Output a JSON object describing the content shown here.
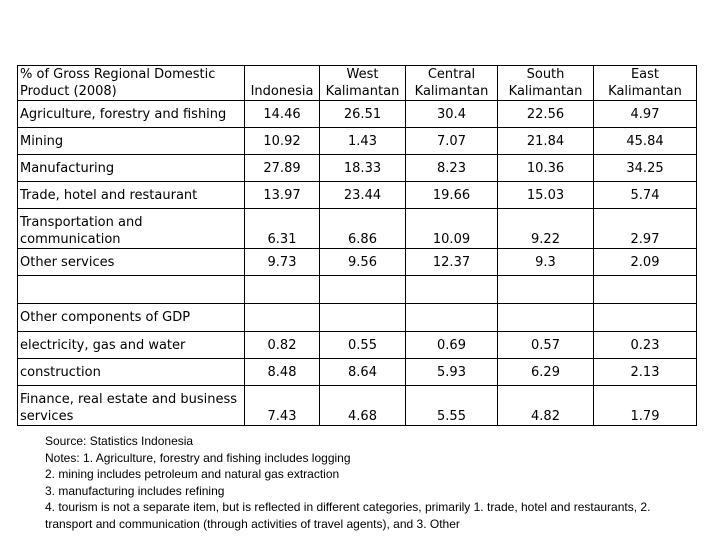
{
  "header": {
    "label_lines": [
      "% of Gross Regional Domestic",
      "Product (2008)"
    ],
    "columns": [
      [
        "",
        "Indonesia"
      ],
      [
        "West",
        "Kalimantan"
      ],
      [
        "Central",
        "Kalimantan"
      ],
      [
        "South",
        "Kalimantan"
      ],
      [
        "East",
        "Kalimantan"
      ]
    ]
  },
  "rows": [
    {
      "label": [
        "Agriculture, forestry and fishing"
      ],
      "values": [
        "14.46",
        "26.51",
        "30.4",
        "22.56",
        "4.97"
      ]
    },
    {
      "label": [
        "Mining"
      ],
      "values": [
        "10.92",
        "1.43",
        "7.07",
        "21.84",
        "45.84"
      ]
    },
    {
      "label": [
        "Manufacturing"
      ],
      "values": [
        "27.89",
        "18.33",
        "8.23",
        "10.36",
        "34.25"
      ]
    },
    {
      "label": [
        "Trade, hotel and restaurant"
      ],
      "values": [
        "13.97",
        "23.44",
        "19.66",
        "15.03",
        "5.74"
      ]
    },
    {
      "label": [
        "Transportation and",
        "communication"
      ],
      "values": [
        "6.31",
        "6.86",
        "10.09",
        "9.22",
        "2.97"
      ]
    },
    {
      "label": [
        "Other services"
      ],
      "values": [
        "9.73",
        "9.56",
        "12.37",
        "9.3",
        "2.09"
      ]
    },
    {
      "label": [
        ""
      ],
      "values": [
        "",
        "",
        "",
        "",
        ""
      ]
    },
    {
      "label": [
        "Other components of GDP"
      ],
      "values": [
        "",
        "",
        "",
        "",
        ""
      ]
    },
    {
      "label": [
        "electricity, gas and water"
      ],
      "values": [
        "0.82",
        "0.55",
        "0.69",
        "0.57",
        "0.23"
      ]
    },
    {
      "label": [
        "construction"
      ],
      "values": [
        "8.48",
        "8.64",
        "5.93",
        "6.29",
        "2.13"
      ]
    },
    {
      "label": [
        "Finance, real estate and business",
        "services"
      ],
      "values": [
        "7.43",
        "4.68",
        "5.55",
        "4.82",
        "1.79"
      ]
    }
  ],
  "notes": [
    "Source: Statistics Indonesia",
    "Notes: 1. Agriculture, forestry and fishing includes logging",
    "2. mining includes petroleum and natural gas extraction",
    "3. manufacturing includes refining",
    "4. tourism is not a separate item, but is reflected in different categories, primarily 1. trade, hotel and restaurants, 2. transport and communication (through activities of travel agents), and 3. Other"
  ]
}
